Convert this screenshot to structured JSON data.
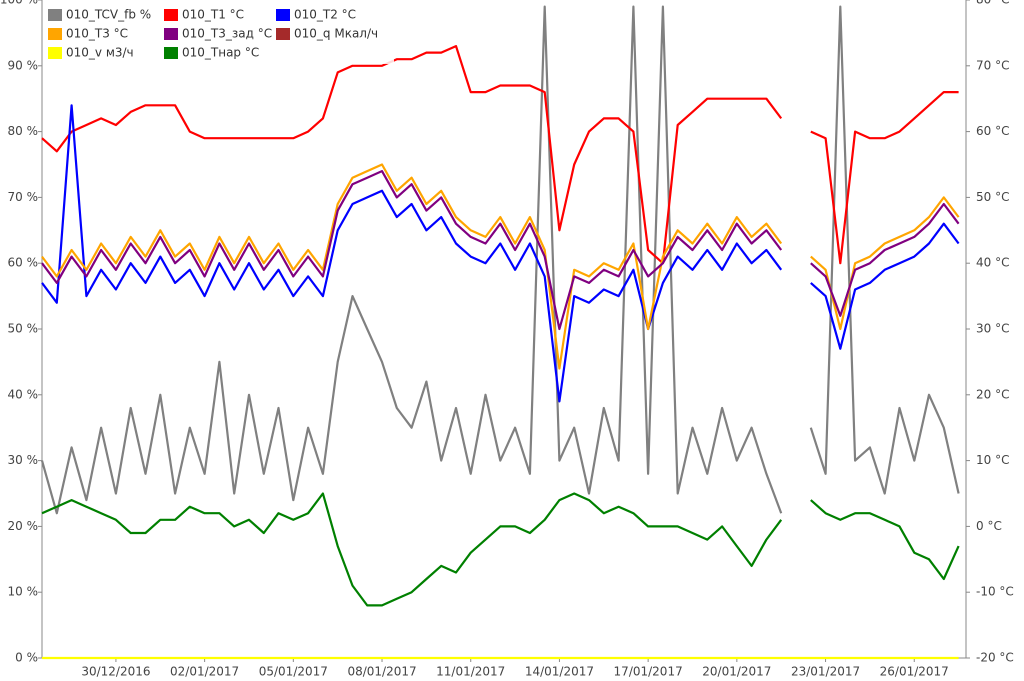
{
  "chart_data": {
    "type": "line",
    "categories": [
      null,
      null,
      null,
      null,
      null,
      "30/12/2016",
      null,
      null,
      null,
      null,
      null,
      "02/01/2017",
      null,
      null,
      null,
      null,
      null,
      "05/01/2017",
      null,
      null,
      null,
      null,
      null,
      "08/01/2017",
      null,
      null,
      null,
      null,
      null,
      "11/01/2017",
      null,
      null,
      null,
      null,
      null,
      "14/01/2017",
      null,
      null,
      null,
      null,
      null,
      "17/01/2017",
      null,
      null,
      null,
      null,
      null,
      "20/01/2017",
      null,
      null,
      null,
      null,
      null,
      "23/01/2017",
      null,
      null,
      null,
      null,
      null,
      "26/01/2017",
      null,
      null,
      null
    ],
    "ylim": [
      0,
      100
    ],
    "yticks": [
      {
        "value": 0,
        "label": "0 %"
      },
      {
        "value": 10,
        "label": "10 %"
      },
      {
        "value": 20,
        "label": "20 %"
      },
      {
        "value": 30,
        "label": "30 %"
      },
      {
        "value": 40,
        "label": "40 %"
      },
      {
        "value": 50,
        "label": "50 %"
      },
      {
        "value": 60,
        "label": "60 %"
      },
      {
        "value": 70,
        "label": "70 %"
      },
      {
        "value": 80,
        "label": "80 %"
      },
      {
        "value": 90,
        "label": "90 %"
      },
      {
        "value": 100,
        "label": "100 %"
      }
    ],
    "y2lim": [
      -20,
      80
    ],
    "y2ticks": [
      {
        "value": -20,
        "label": "-20 °C"
      },
      {
        "value": -10,
        "label": "-10 °C"
      },
      {
        "value": 0,
        "label": "0 °C"
      },
      {
        "value": 10,
        "label": "10 °C"
      },
      {
        "value": 20,
        "label": "20 °C"
      },
      {
        "value": 30,
        "label": "30 °C"
      },
      {
        "value": 40,
        "label": "40 °C"
      },
      {
        "value": 50,
        "label": "50 °C"
      },
      {
        "value": 60,
        "label": "60 °C"
      },
      {
        "value": 70,
        "label": "70 °C"
      },
      {
        "value": 80,
        "label": "80 °C"
      }
    ],
    "grid": false,
    "legend": "top-left",
    "series": [
      {
        "name": "010_TCV_fb %",
        "color": "#808080",
        "values": [
          30,
          22,
          32,
          24,
          35,
          25,
          38,
          28,
          40,
          25,
          35,
          28,
          45,
          25,
          40,
          28,
          38,
          24,
          35,
          28,
          45,
          55,
          50,
          45,
          38,
          35,
          42,
          30,
          38,
          28,
          40,
          30,
          35,
          28,
          99,
          30,
          35,
          25,
          38,
          30,
          99,
          28,
          99,
          25,
          35,
          28,
          38,
          30,
          35,
          28,
          22,
          null,
          35,
          28,
          99,
          30,
          32,
          25,
          38,
          30,
          40,
          35,
          25
        ]
      },
      {
        "name": "010_T1 °C",
        "color": "#ff0000",
        "axis": "y2",
        "values": [
          59,
          57,
          60,
          61,
          62,
          61,
          63,
          64,
          64,
          64,
          60,
          59,
          59,
          59,
          59,
          59,
          59,
          59,
          60,
          62,
          69,
          70,
          70,
          70,
          71,
          71,
          72,
          72,
          73,
          66,
          66,
          67,
          67,
          67,
          66,
          45,
          55,
          60,
          62,
          62,
          60,
          42,
          40,
          61,
          63,
          65,
          65,
          65,
          65,
          65,
          62,
          null,
          60,
          59,
          40,
          60,
          59,
          59,
          60,
          62,
          64,
          66,
          66
        ]
      },
      {
        "name": "010_T2 °C",
        "color": "#0000ff",
        "axis": "y2",
        "values": [
          37,
          34,
          64,
          35,
          39,
          36,
          40,
          37,
          41,
          37,
          39,
          35,
          40,
          36,
          40,
          36,
          39,
          35,
          38,
          35,
          45,
          49,
          50,
          51,
          47,
          49,
          45,
          47,
          43,
          41,
          40,
          43,
          39,
          43,
          38,
          19,
          35,
          34,
          36,
          35,
          39,
          30,
          37,
          41,
          39,
          42,
          39,
          43,
          40,
          42,
          39,
          null,
          37,
          35,
          27,
          36,
          37,
          39,
          40,
          41,
          43,
          46,
          43
        ]
      },
      {
        "name": "010_T3 °C",
        "color": "#ffa500",
        "axis": "y2",
        "values": [
          41,
          38,
          42,
          39,
          43,
          40,
          44,
          41,
          45,
          41,
          43,
          39,
          44,
          40,
          44,
          40,
          43,
          39,
          42,
          39,
          49,
          53,
          54,
          55,
          51,
          53,
          49,
          51,
          47,
          45,
          44,
          47,
          43,
          47,
          42,
          24,
          39,
          38,
          40,
          39,
          43,
          30,
          41,
          45,
          43,
          46,
          43,
          47,
          44,
          46,
          43,
          null,
          41,
          39,
          30,
          40,
          41,
          43,
          44,
          45,
          47,
          50,
          47
        ]
      },
      {
        "name": "010_T3_зад °C",
        "color": "#800080",
        "axis": "y2",
        "values": [
          40,
          37,
          41,
          38,
          42,
          39,
          43,
          40,
          44,
          40,
          42,
          38,
          43,
          39,
          43,
          39,
          42,
          38,
          41,
          38,
          48,
          52,
          53,
          54,
          50,
          52,
          48,
          50,
          46,
          44,
          43,
          46,
          42,
          46,
          41,
          30,
          38,
          37,
          39,
          38,
          42,
          38,
          40,
          44,
          42,
          45,
          42,
          46,
          43,
          45,
          42,
          null,
          40,
          38,
          32,
          39,
          40,
          42,
          43,
          44,
          46,
          49,
          46
        ]
      },
      {
        "name": "010_q Мкал/ч",
        "color": "#a52a2a",
        "values": [
          null,
          null,
          null,
          null,
          null,
          null,
          null,
          null,
          null,
          null,
          null,
          null,
          null,
          null,
          null,
          null,
          null,
          null,
          null,
          null,
          null,
          null,
          null,
          null,
          null,
          null,
          null,
          null,
          null,
          null,
          null,
          null,
          null,
          null,
          null,
          null,
          null,
          null,
          null,
          null,
          null,
          null,
          null,
          null,
          null,
          null,
          null,
          null,
          null,
          null,
          null,
          null,
          null,
          null,
          null,
          null,
          null,
          null,
          null,
          null,
          null,
          null,
          null
        ]
      },
      {
        "name": "010_v м3/ч",
        "color": "#ffff00",
        "values": [
          0,
          0,
          0,
          0,
          0,
          0,
          0,
          0,
          0,
          0,
          0,
          0,
          0,
          0,
          0,
          0,
          0,
          0,
          0,
          0,
          0,
          0,
          0,
          0,
          0,
          0,
          0,
          0,
          0,
          0,
          0,
          0,
          0,
          0,
          0,
          0,
          0,
          0,
          0,
          0,
          0,
          0,
          0,
          0,
          0,
          0,
          0,
          0,
          0,
          0,
          0,
          0,
          0,
          0,
          0,
          0,
          0,
          0,
          0,
          0,
          0,
          0,
          0
        ]
      },
      {
        "name": "010_Тнар °C",
        "color": "#008000",
        "axis": "y2",
        "values": [
          2,
          3,
          4,
          3,
          2,
          1,
          -1,
          -1,
          1,
          1,
          3,
          2,
          2,
          0,
          1,
          -1,
          2,
          1,
          2,
          5,
          -3,
          -9,
          -12,
          -12,
          -11,
          -10,
          -8,
          -6,
          -7,
          -4,
          -2,
          0,
          0,
          -1,
          1,
          4,
          5,
          4,
          2,
          3,
          2,
          0,
          0,
          0,
          -1,
          -2,
          0,
          -3,
          -6,
          -2,
          1,
          null,
          4,
          2,
          1,
          2,
          2,
          1,
          0,
          -4,
          -5,
          -8,
          -3
        ]
      }
    ]
  }
}
